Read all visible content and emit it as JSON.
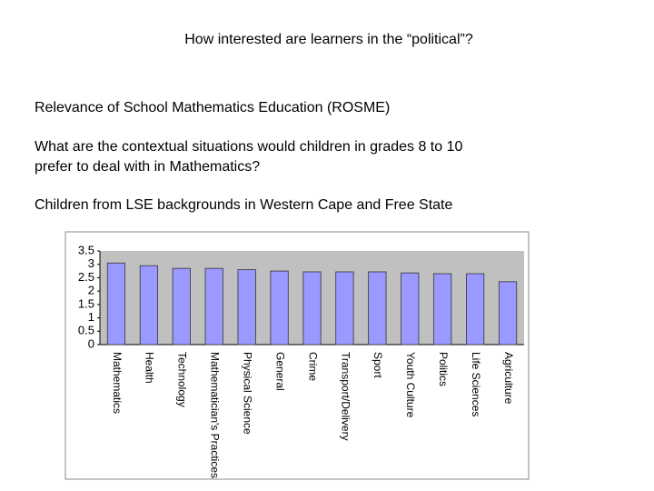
{
  "slide": {
    "title": "How interested are learners in the “political”?",
    "lines": [
      "Relevance of School Mathematics Education (ROSME)",
      "What are the contextual situations would children in grades 8 to 10",
      "prefer to deal with in Mathematics?",
      "Children from LSE backgrounds in Western Cape and Free State"
    ]
  },
  "chart_data": {
    "type": "bar",
    "categories": [
      "Mathematics",
      "Health",
      "Technology",
      "Mathematician's Practices",
      "Physical Science",
      "General",
      "Crime",
      "Transport/Delivery",
      "Sport",
      "Youth Culture",
      "Politics",
      "Life Sciences",
      "Agriculture"
    ],
    "values": [
      3.05,
      2.95,
      2.85,
      2.85,
      2.8,
      2.75,
      2.72,
      2.72,
      2.72,
      2.68,
      2.65,
      2.65,
      2.35
    ],
    "color": "#9999ff",
    "ylim": [
      0,
      3.5
    ],
    "yticks": [
      0,
      0.5,
      1,
      1.5,
      2,
      2.5,
      3,
      3.5
    ],
    "grid": false
  }
}
